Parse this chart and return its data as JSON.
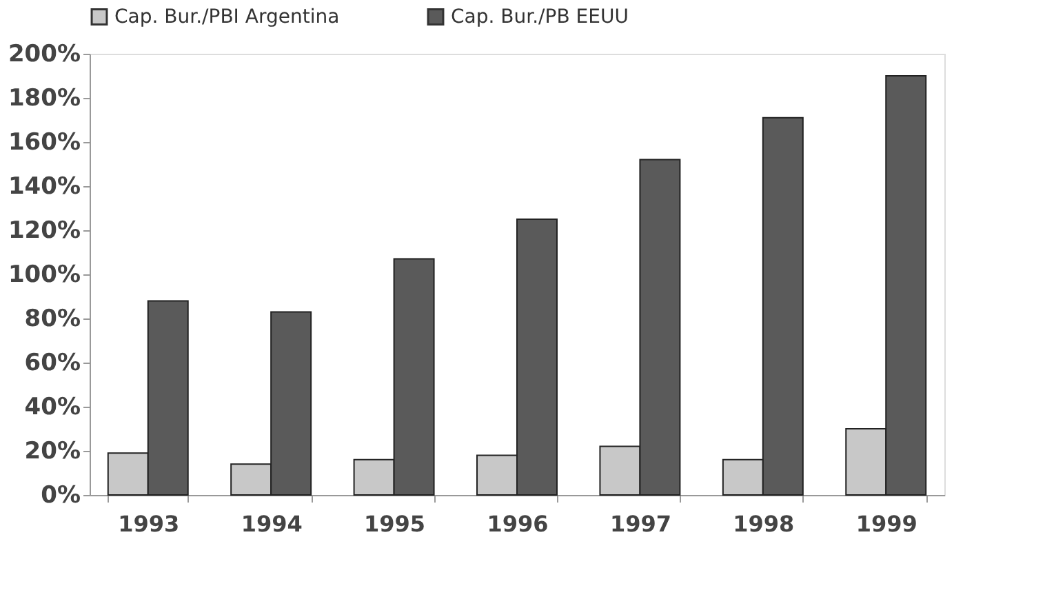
{
  "chart_data": {
    "type": "bar",
    "categories": [
      "1993",
      "1994",
      "1995",
      "1996",
      "1997",
      "1998",
      "1999"
    ],
    "series": [
      {
        "name": "Cap. Bur./PBI Argentina",
        "color": "#c8c8c8",
        "values": [
          19,
          14,
          16,
          18,
          22,
          16,
          30
        ]
      },
      {
        "name": "Cap. Bur./PB EEUU",
        "color": "#5a5a5a",
        "values": [
          88,
          83,
          107,
          125,
          152,
          171,
          190
        ]
      }
    ],
    "ylim": [
      0,
      200
    ],
    "yticks": [
      {
        "value": 0,
        "label": "0%"
      },
      {
        "value": 20,
        "label": "20%"
      },
      {
        "value": 40,
        "label": "40%"
      },
      {
        "value": 60,
        "label": "60%"
      },
      {
        "value": 80,
        "label": "80%"
      },
      {
        "value": 100,
        "label": "100%"
      },
      {
        "value": 120,
        "label": "120%"
      },
      {
        "value": 140,
        "label": "140%"
      },
      {
        "value": 160,
        "label": "160%"
      },
      {
        "value": 180,
        "label": "180%"
      },
      {
        "value": 200,
        "label": "200%"
      }
    ],
    "grid": false,
    "legend": "top"
  }
}
